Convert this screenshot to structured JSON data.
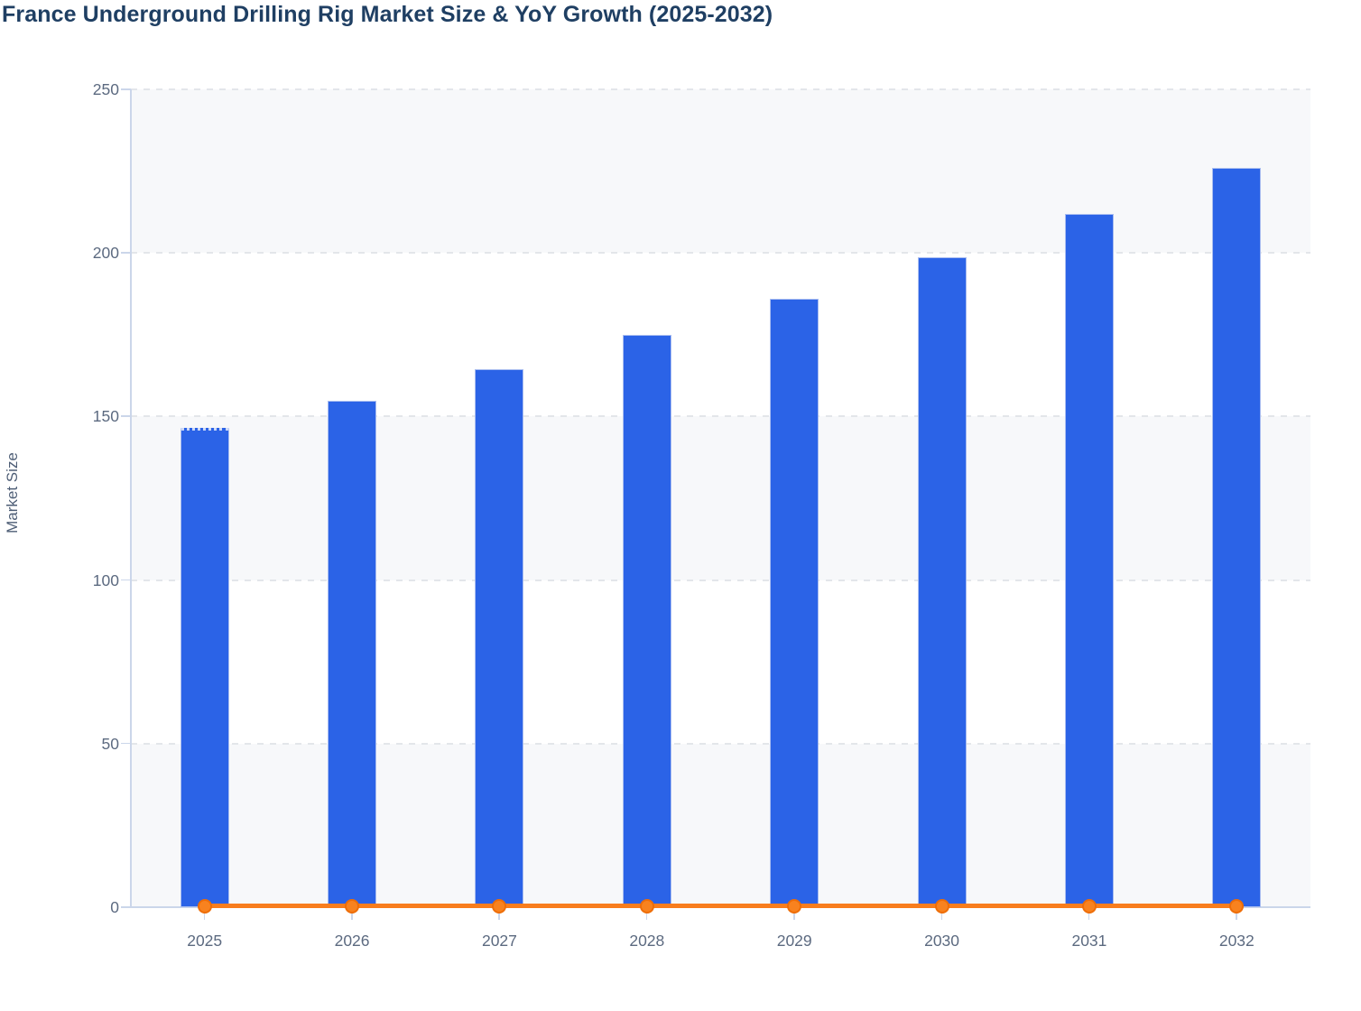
{
  "chart_data": {
    "type": "combo",
    "title": "France Underground Drilling Rig Market Size & YoY Growth (2025-2032)",
    "ylabel": "Market Size",
    "xlabel": "",
    "categories": [
      "2025",
      "2026",
      "2027",
      "2028",
      "2029",
      "2030",
      "2031",
      "2032"
    ],
    "series": [
      {
        "name": "Market Size",
        "type": "bar",
        "values": [
          146.5,
          154.8,
          164.4,
          175.0,
          186.1,
          198.7,
          211.9,
          225.9
        ],
        "color": "#2b63e7",
        "border_color": "#a9bdf0",
        "dotted_top_index": 0
      },
      {
        "name": "YoY Growth",
        "type": "line",
        "values": [
          0,
          0.057,
          0.062,
          0.064,
          0.063,
          0.068,
          0.066,
          0.066
        ],
        "color": "#f87d1d",
        "marker_fill": "#f8821f",
        "marker_stroke": "#ee6d07",
        "marker_shape": "circle"
      }
    ],
    "ylim": [
      0,
      250
    ],
    "yticks": [
      0,
      50,
      100,
      150,
      200,
      250
    ],
    "grid": "dashed-horizontal",
    "legend_visible": false,
    "plot_band_colors": [
      "#f7f8fa",
      "#ffffff"
    ]
  },
  "colors": {
    "title_text": "#1f3f63",
    "axis_title_text": "#4e5e76",
    "tick_label_text": "#5c6a80",
    "gridline": "#e3e6ea",
    "axis_line": "#cbd6ea",
    "background": "#ffffff"
  }
}
